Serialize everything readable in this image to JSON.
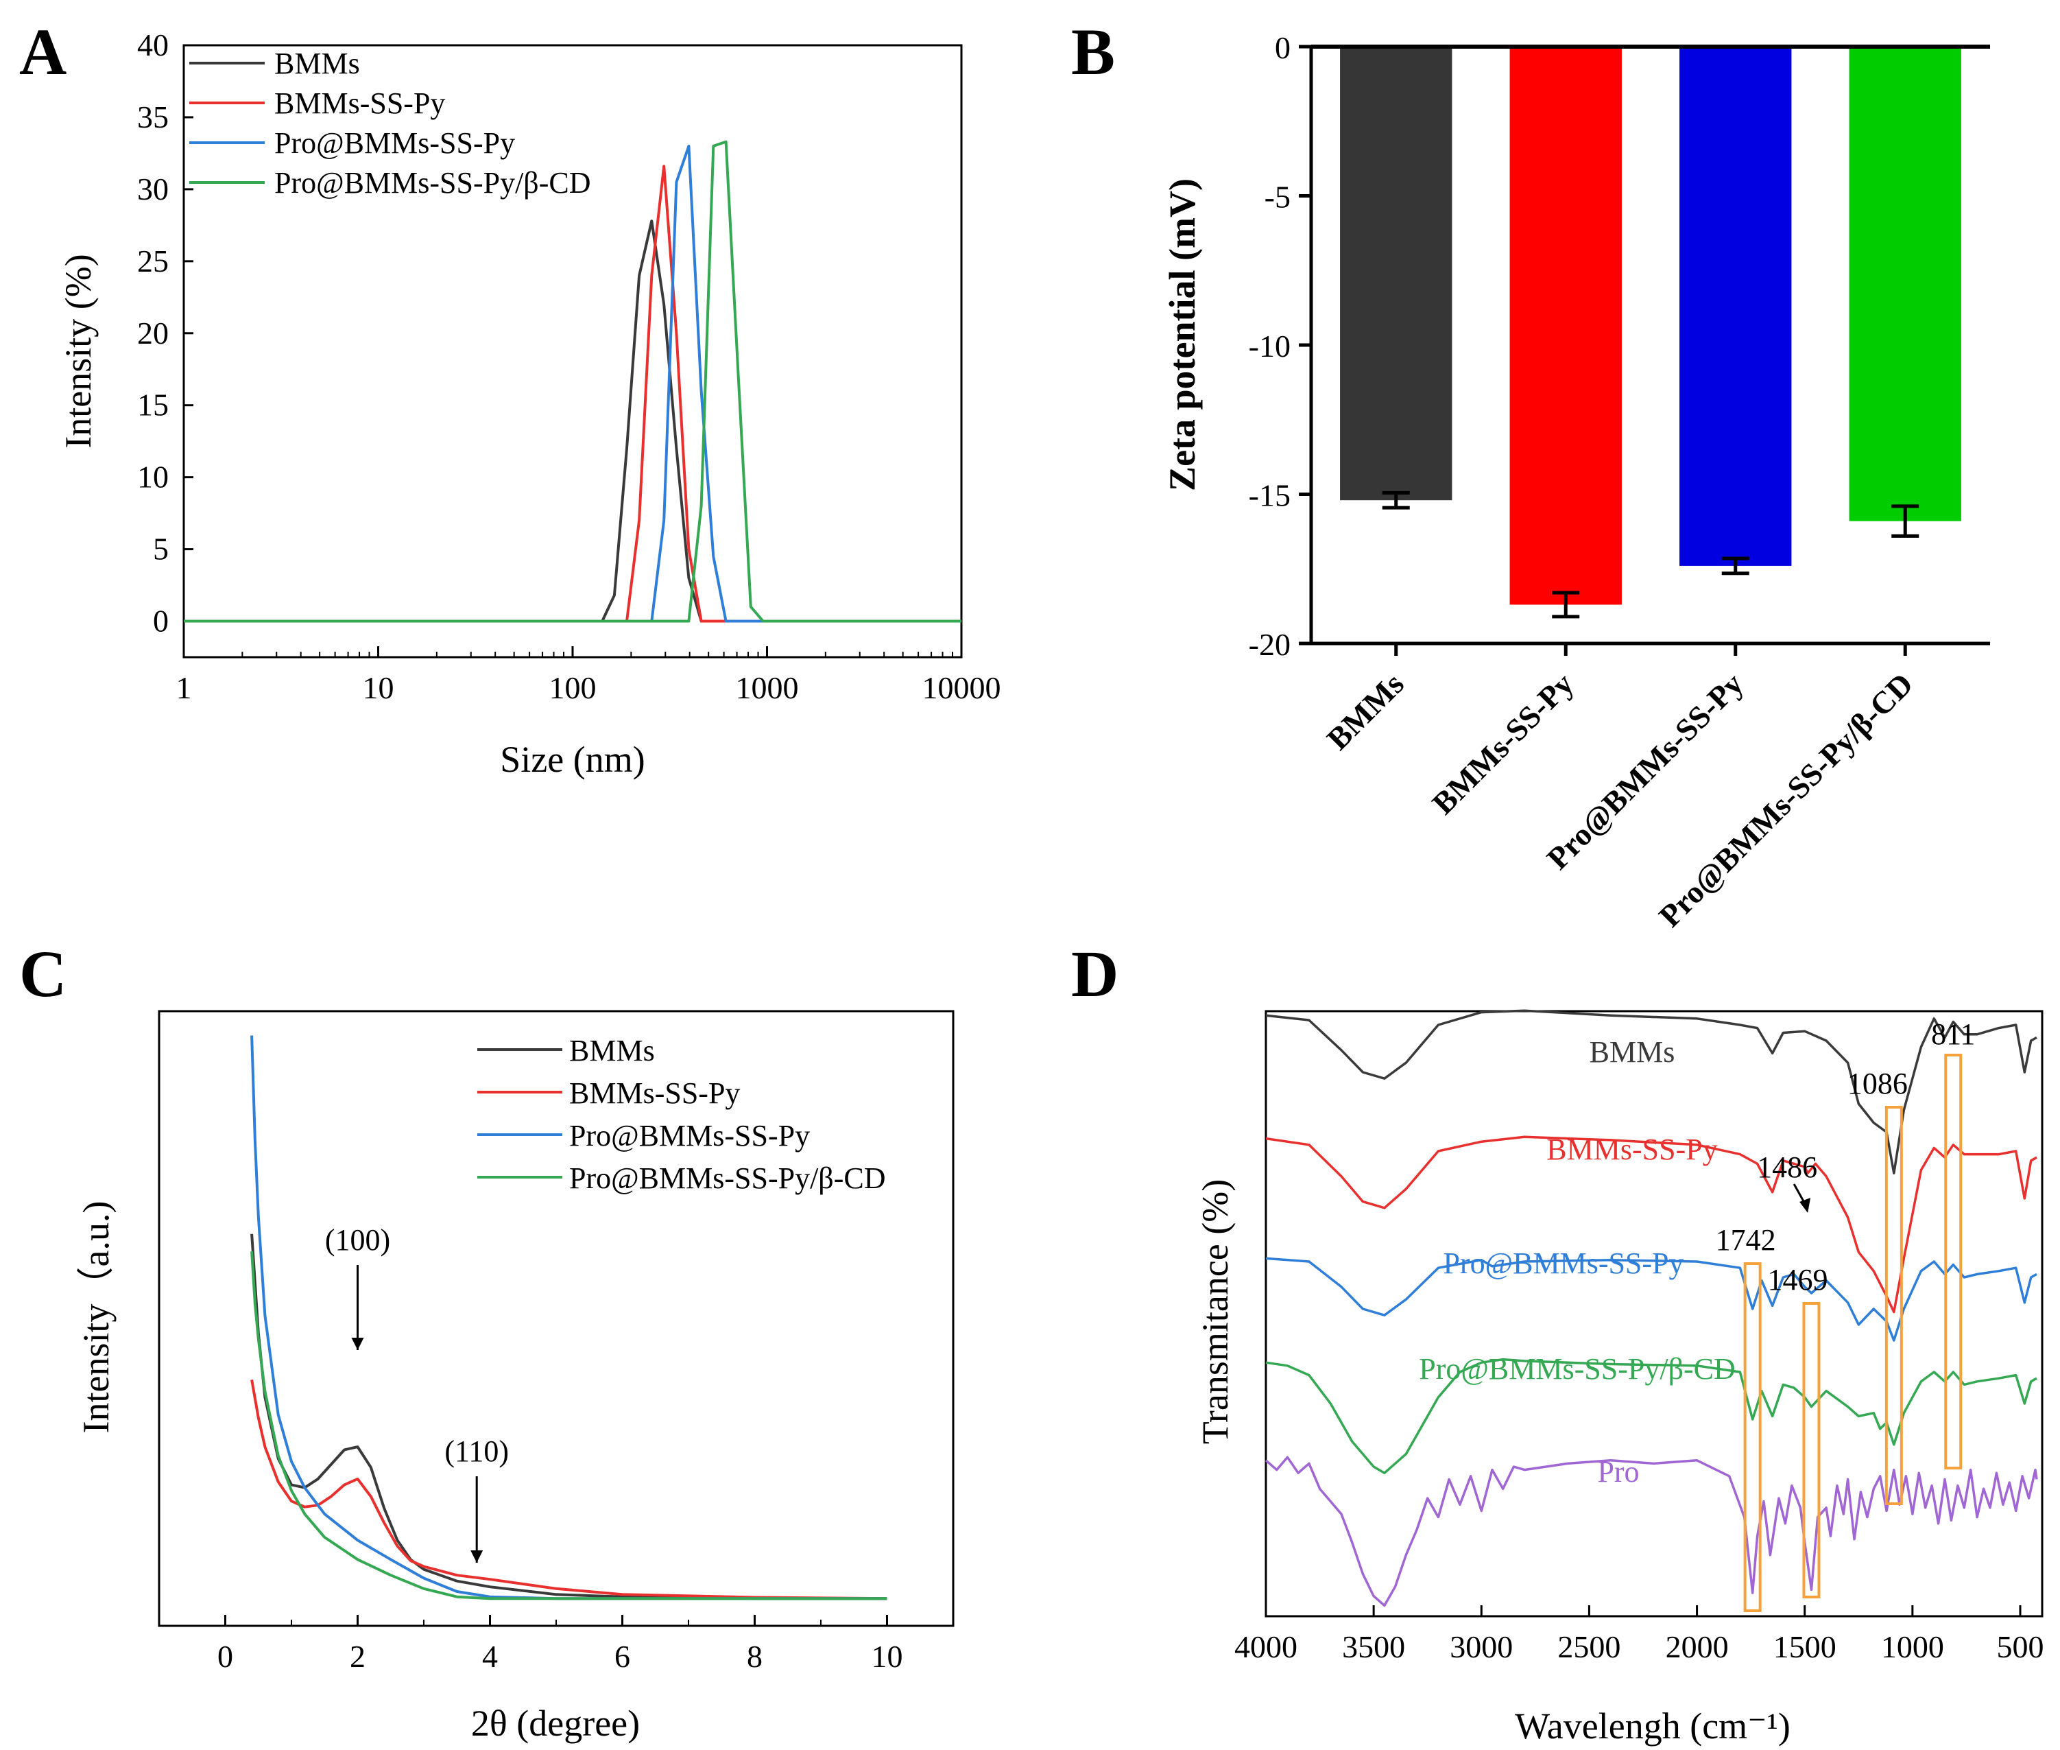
{
  "figure": {
    "panels": [
      "A",
      "B",
      "C",
      "D"
    ]
  },
  "chart_data": [
    {
      "panel": "A",
      "type": "line",
      "title": "",
      "xlabel": "Size (nm)",
      "ylabel": "Intensity (%)",
      "xscale": "log",
      "xlim": [
        1,
        10000
      ],
      "ylim": [
        -2.5,
        40
      ],
      "xticks": [
        "1",
        "10",
        "100",
        "1000",
        "10000"
      ],
      "yticks": [
        "0",
        "5",
        "10",
        "15",
        "20",
        "25",
        "30",
        "35",
        "40"
      ],
      "legend_position": "top-left",
      "series": [
        {
          "name": "BMMs",
          "color": "#3a3a3a",
          "x": [
            1,
            142,
            164,
            190,
            220,
            255,
            295,
            342,
            396,
            459,
            530,
            10000
          ],
          "y": [
            0,
            0,
            1.8,
            12,
            24,
            27.8,
            22,
            12,
            3,
            0,
            0,
            0
          ]
        },
        {
          "name": "BMMs-SS-Py",
          "color": "#e8312f",
          "x": [
            1,
            190,
            220,
            255,
            295,
            342,
            396,
            459,
            10000
          ],
          "y": [
            0,
            0,
            7,
            24,
            31.6,
            20,
            5,
            0,
            0
          ]
        },
        {
          "name": "Pro@BMMs-SS-Py",
          "color": "#2f7ed8",
          "x": [
            1,
            255,
            295,
            342,
            396,
            459,
            530,
            615,
            10000
          ],
          "y": [
            0,
            0,
            7,
            30.5,
            33,
            16,
            4.5,
            0,
            0
          ]
        },
        {
          "name": "Pro@BMMs-SS-Py/β-CD",
          "color": "#35a853",
          "x": [
            1,
            396,
            459,
            530,
            615,
            712,
            825,
            955,
            10000
          ],
          "y": [
            0,
            0,
            8,
            33,
            33.3,
            17,
            1,
            0,
            0
          ]
        }
      ]
    },
    {
      "panel": "B",
      "type": "bar",
      "title": "",
      "xlabel": "",
      "ylabel": "Zeta potential (mV)",
      "ylim": [
        -20,
        0
      ],
      "yticks": [
        "0",
        "-5",
        "-10",
        "-15",
        "-20"
      ],
      "categories": [
        "BMMs",
        "BMMs-SS-Py",
        "Pro@BMMs-SS-Py",
        "Pro@BMMs-SS-Py/β-CD"
      ],
      "values": [
        -15.2,
        -18.7,
        -17.4,
        -15.9
      ],
      "errors": [
        0.25,
        0.4,
        0.25,
        0.5
      ],
      "colors": [
        "#363636",
        "#ff0000",
        "#0000e0",
        "#00cc00"
      ]
    },
    {
      "panel": "C",
      "type": "line",
      "title": "",
      "xlabel": "2θ (degree)",
      "ylabel": "Intensity（a.u.)",
      "xlim": [
        -1,
        11
      ],
      "ylim": [
        -0.3,
        10
      ],
      "xticks": [
        "0",
        "2",
        "4",
        "6",
        "8",
        "10"
      ],
      "legend_position": "top-right",
      "annotations": [
        {
          "text": "(100)",
          "x": 2.0
        },
        {
          "text": "(110)",
          "x": 3.8
        }
      ],
      "series": [
        {
          "name": "BMMs",
          "color": "#3a3a3a",
          "x": [
            0.4,
            0.5,
            0.6,
            0.8,
            1.0,
            1.2,
            1.4,
            1.6,
            1.8,
            2.0,
            2.2,
            2.4,
            2.6,
            2.8,
            3.0,
            3.5,
            4.0,
            5,
            6,
            8,
            10
          ],
          "y": [
            6.3,
            4.6,
            3.5,
            2.45,
            2.0,
            1.95,
            2.1,
            2.35,
            2.6,
            2.65,
            2.3,
            1.6,
            1.05,
            0.72,
            0.55,
            0.35,
            0.25,
            0.12,
            0.08,
            0.05,
            0.05
          ]
        },
        {
          "name": "BMMs-SS-Py",
          "color": "#e8312f",
          "x": [
            0.4,
            0.5,
            0.6,
            0.8,
            1.0,
            1.2,
            1.4,
            1.6,
            1.8,
            2.0,
            2.2,
            2.4,
            2.6,
            2.8,
            3.0,
            3.5,
            4.0,
            4.5,
            5,
            6,
            8,
            10
          ],
          "y": [
            3.8,
            3.15,
            2.65,
            2.05,
            1.72,
            1.62,
            1.65,
            1.8,
            2.0,
            2.1,
            1.8,
            1.35,
            0.95,
            0.7,
            0.6,
            0.45,
            0.38,
            0.3,
            0.22,
            0.12,
            0.07,
            0.05
          ]
        },
        {
          "name": "Pro@BMMs-SS-Py",
          "color": "#2f7ed8",
          "x": [
            0.4,
            0.45,
            0.5,
            0.6,
            0.8,
            1.0,
            1.2,
            1.5,
            2.0,
            2.5,
            3.0,
            3.5,
            4.0,
            5,
            6,
            8,
            10
          ],
          "y": [
            9.7,
            7.9,
            6.6,
            4.9,
            3.2,
            2.4,
            1.95,
            1.5,
            1.05,
            0.72,
            0.4,
            0.17,
            0.08,
            0.05,
            0.05,
            0.05,
            0.05
          ]
        },
        {
          "name": "Pro@BMMs-SS-Py/β-CD",
          "color": "#35a853",
          "x": [
            0.4,
            0.45,
            0.5,
            0.6,
            0.8,
            1.0,
            1.2,
            1.5,
            2.0,
            2.5,
            3.0,
            3.5,
            4.0,
            5,
            6,
            8,
            10
          ],
          "y": [
            6.0,
            5.1,
            4.5,
            3.6,
            2.5,
            1.9,
            1.5,
            1.1,
            0.72,
            0.45,
            0.22,
            0.08,
            0.05,
            0.05,
            0.05,
            0.05,
            0.05
          ]
        }
      ]
    },
    {
      "panel": "D",
      "type": "line",
      "title": "",
      "xlabel": "Wavelengh (cm⁻¹)",
      "ylabel": "Transmitance (%)",
      "xlim": [
        4000,
        400
      ],
      "xticks": [
        "4000",
        "3500",
        "3000",
        "2500",
        "2000",
        "1500",
        "1000",
        "500"
      ],
      "peak_labels": [
        "1742",
        "1486",
        "1469",
        "1086",
        "811"
      ],
      "series": [
        {
          "name": "BMMs",
          "color": "#3a3a3a",
          "offset": 8.1,
          "x": [
            4000,
            3800,
            3650,
            3550,
            3450,
            3350,
            3200,
            3000,
            2800,
            2400,
            2000,
            1800,
            1720,
            1650,
            1600,
            1500,
            1400,
            1300,
            1250,
            1180,
            1120,
            1086,
            1040,
            960,
            900,
            850,
            811,
            760,
            700,
            600,
            520,
            480,
            450,
            420
          ],
          "y": [
            0.2,
            0.05,
            -0.9,
            -1.6,
            -1.8,
            -1.3,
            -0.1,
            0.3,
            0.35,
            0.2,
            0.1,
            -0.1,
            -0.2,
            -1.0,
            -0.35,
            -0.3,
            -0.6,
            -1.3,
            -2.6,
            -3.2,
            -3.5,
            -4.8,
            -2.8,
            -0.8,
            0.1,
            -0.5,
            0.0,
            -0.4,
            -0.4,
            -0.2,
            -0.1,
            -1.6,
            -0.6,
            -0.5
          ]
        },
        {
          "name": "BMMs-SS-Py",
          "color": "#e8312f",
          "offset": 4.2,
          "x": [
            4000,
            3800,
            3650,
            3550,
            3450,
            3350,
            3200,
            3000,
            2800,
            2400,
            2000,
            1800,
            1720,
            1650,
            1600,
            1500,
            1486,
            1450,
            1400,
            1300,
            1250,
            1180,
            1120,
            1086,
            1040,
            960,
            900,
            850,
            811,
            760,
            700,
            600,
            520,
            480,
            450,
            420
          ],
          "y": [
            0.2,
            0.0,
            -1.0,
            -1.8,
            -2.0,
            -1.4,
            -0.2,
            0.1,
            0.25,
            0.15,
            0.0,
            -0.3,
            -0.6,
            -1.5,
            -0.5,
            -0.7,
            -0.9,
            -0.6,
            -1.0,
            -2.3,
            -3.4,
            -4.0,
            -4.8,
            -5.3,
            -3.6,
            -0.8,
            -0.1,
            -0.4,
            0.0,
            -0.3,
            -0.3,
            -0.3,
            -0.2,
            -1.7,
            -0.5,
            -0.4
          ]
        },
        {
          "name": "Pro@BMMs-SS-Py",
          "color": "#2f7ed8",
          "offset": 0.6,
          "x": [
            4000,
            3800,
            3650,
            3550,
            3450,
            3350,
            3200,
            3000,
            2950,
            2800,
            2400,
            2000,
            1800,
            1742,
            1700,
            1650,
            1600,
            1550,
            1500,
            1469,
            1400,
            1300,
            1250,
            1180,
            1120,
            1086,
            1040,
            960,
            900,
            850,
            811,
            760,
            700,
            600,
            520,
            480,
            450,
            420
          ],
          "y": [
            0.0,
            -0.1,
            -0.9,
            -1.6,
            -1.8,
            -1.3,
            -0.3,
            -0.05,
            -0.25,
            -0.1,
            -0.05,
            -0.1,
            -0.3,
            -1.6,
            -0.7,
            -1.5,
            -0.6,
            -0.5,
            -0.9,
            -1.1,
            -0.7,
            -1.4,
            -2.1,
            -1.6,
            -2.0,
            -2.6,
            -1.6,
            -0.4,
            -0.1,
            -0.5,
            -0.2,
            -0.6,
            -0.5,
            -0.4,
            -0.3,
            -1.4,
            -0.6,
            -0.5
          ]
        },
        {
          "name": "Pro@BMMs-SS-Py/β-CD",
          "color": "#35a853",
          "offset": -2.8,
          "x": [
            4000,
            3900,
            3800,
            3700,
            3600,
            3500,
            3450,
            3350,
            3200,
            3100,
            3000,
            2900,
            2800,
            2400,
            2000,
            1800,
            1742,
            1700,
            1650,
            1600,
            1550,
            1500,
            1469,
            1400,
            1300,
            1250,
            1180,
            1150,
            1120,
            1086,
            1040,
            960,
            900,
            850,
            811,
            760,
            700,
            600,
            520,
            480,
            450,
            420
          ],
          "y": [
            0.1,
            0.0,
            -0.3,
            -1.2,
            -2.4,
            -3.2,
            -3.4,
            -2.8,
            -1.0,
            -0.2,
            0.1,
            0.2,
            0.15,
            0.05,
            0.0,
            -0.2,
            -1.7,
            -0.8,
            -1.6,
            -0.6,
            -0.7,
            -1.0,
            -1.3,
            -0.8,
            -1.3,
            -1.6,
            -1.5,
            -2.0,
            -1.8,
            -2.5,
            -1.5,
            -0.5,
            -0.2,
            -0.5,
            -0.2,
            -0.6,
            -0.5,
            -0.4,
            -0.3,
            -1.2,
            -0.5,
            -0.4
          ]
        },
        {
          "name": "Pro",
          "color": "#a066d3",
          "offset": -5.8,
          "x": [
            4000,
            3950,
            3900,
            3850,
            3800,
            3750,
            3700,
            3650,
            3600,
            3550,
            3500,
            3450,
            3400,
            3350,
            3300,
            3250,
            3200,
            3150,
            3100,
            3050,
            3000,
            2950,
            2900,
            2850,
            2800,
            2600,
            2400,
            2200,
            2000,
            1850,
            1780,
            1742,
            1720,
            1690,
            1660,
            1620,
            1590,
            1560,
            1520,
            1500,
            1469,
            1440,
            1400,
            1380,
            1350,
            1320,
            1300,
            1270,
            1240,
            1210,
            1180,
            1150,
            1120,
            1086,
            1060,
            1030,
            1000,
            970,
            940,
            910,
            880,
            850,
            820,
            790,
            760,
            730,
            700,
            670,
            640,
            610,
            580,
            550,
            520,
            490,
            460,
            430,
            410
          ],
          "y": [
            0.0,
            -0.3,
            0.1,
            -0.4,
            -0.1,
            -0.9,
            -1.3,
            -1.7,
            -2.6,
            -3.6,
            -4.3,
            -4.6,
            -4.0,
            -3.0,
            -2.2,
            -1.2,
            -1.8,
            -0.6,
            -1.4,
            -0.5,
            -1.6,
            -0.3,
            -0.9,
            -0.2,
            -0.3,
            -0.1,
            0.0,
            -0.1,
            0.0,
            -0.5,
            -1.8,
            -4.2,
            -2.4,
            -1.3,
            -3.0,
            -1.2,
            -2.0,
            -0.8,
            -1.5,
            -2.6,
            -4.1,
            -1.8,
            -1.5,
            -2.4,
            -0.8,
            -1.7,
            -0.6,
            -2.5,
            -1.0,
            -1.8,
            -0.9,
            -0.5,
            -1.6,
            -0.3,
            -1.4,
            -0.5,
            -1.7,
            -0.4,
            -1.5,
            -0.8,
            -2.0,
            -0.6,
            -1.9,
            -0.8,
            -1.5,
            -0.3,
            -1.8,
            -0.9,
            -1.5,
            -0.4,
            -1.4,
            -0.7,
            -1.6,
            -0.5,
            -1.2,
            -0.3,
            -0.6
          ]
        }
      ]
    }
  ]
}
